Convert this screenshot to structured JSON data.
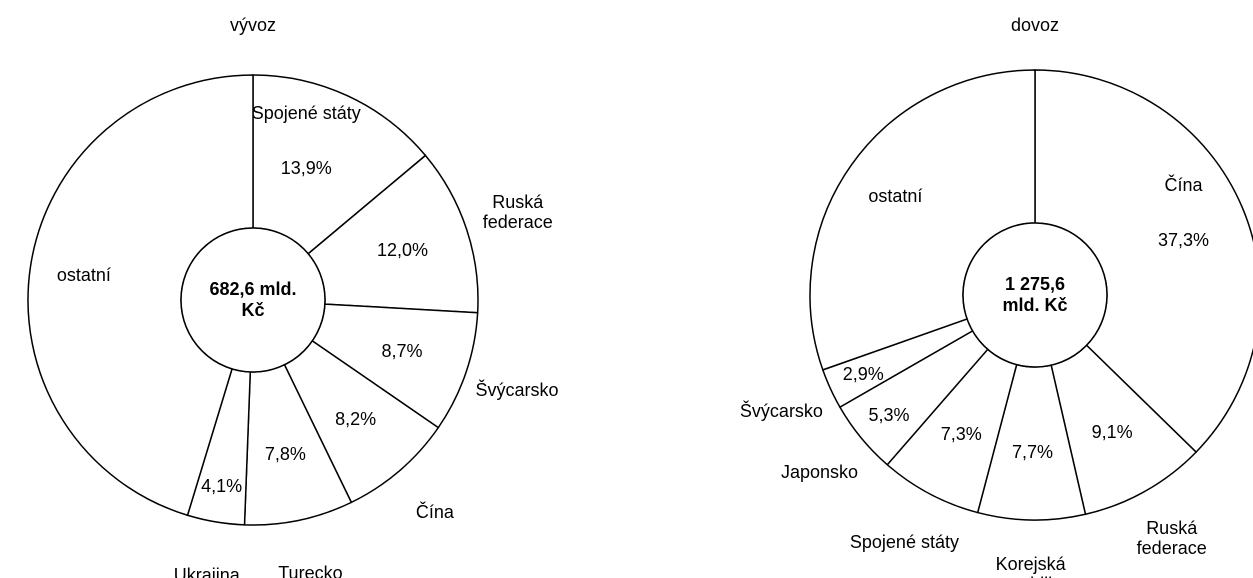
{
  "chart_data": [
    {
      "type": "donut",
      "title": "vývoz",
      "center_label": "682,6 mld. Kč",
      "categories": [
        "Spojené státy",
        "Ruská federace",
        "Švýcarsko",
        "Čína",
        "Turecko",
        "Ukrajina",
        "ostatní"
      ],
      "values": [
        13.9,
        12.0,
        8.7,
        8.2,
        7.8,
        4.1,
        45.3
      ],
      "value_labels": [
        "13,9%",
        "12,0%",
        "8,7%",
        "8,2%",
        "7,8%",
        "4,1%",
        null
      ],
      "color": "#ffffff",
      "stroke": "#000000"
    },
    {
      "type": "donut",
      "title": "dovoz",
      "center_label": "1 275,6 mld. Kč",
      "categories": [
        "Čína",
        "Ruská federace",
        "Korejská republika",
        "Spojené státy",
        "Japonsko",
        "Švýcarsko",
        "ostatní"
      ],
      "values": [
        37.3,
        9.1,
        7.7,
        7.3,
        5.3,
        2.9,
        30.4
      ],
      "value_labels": [
        "37,3%",
        "9,1%",
        "7,7%",
        "7,3%",
        "5,3%",
        "2,9%",
        null
      ],
      "color": "#ffffff",
      "stroke": "#000000"
    }
  ]
}
